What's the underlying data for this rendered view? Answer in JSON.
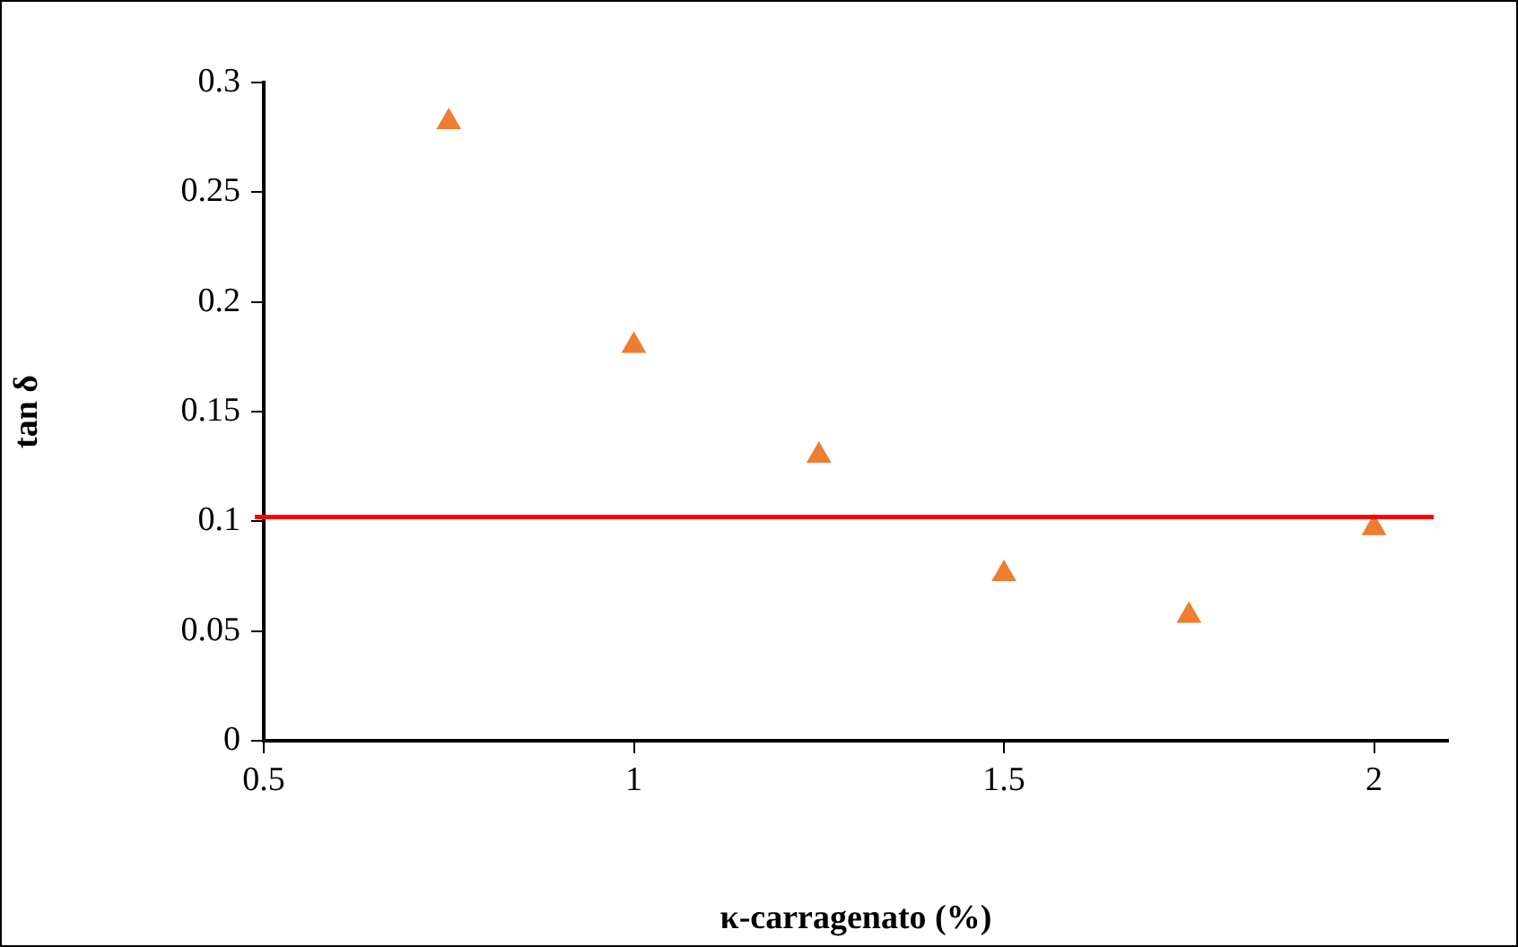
{
  "chart_data": {
    "type": "scatter",
    "xlabel": "κ-carragenato (%)",
    "ylabel": "tan δ",
    "x": [
      0.75,
      1,
      1.25,
      1.5,
      1.75,
      2
    ],
    "series": [
      {
        "color": "#ed7d31",
        "values": [
          0.282,
          0.18,
          0.13,
          0.076,
          0.057,
          0.097
        ]
      }
    ],
    "marker": "triangle",
    "xlim": [
      0.5,
      2.1
    ],
    "xticks": [
      0.5,
      1,
      1.5,
      2
    ],
    "ylim": [
      0,
      0.3
    ],
    "yticks": [
      0,
      0.05,
      0.1,
      0.15,
      0.2,
      0.25,
      0.3
    ],
    "ref_lines": [
      {
        "axis": "y",
        "value": 0.102,
        "color": "#ff0000"
      }
    ],
    "grid": false,
    "legend": false
  }
}
